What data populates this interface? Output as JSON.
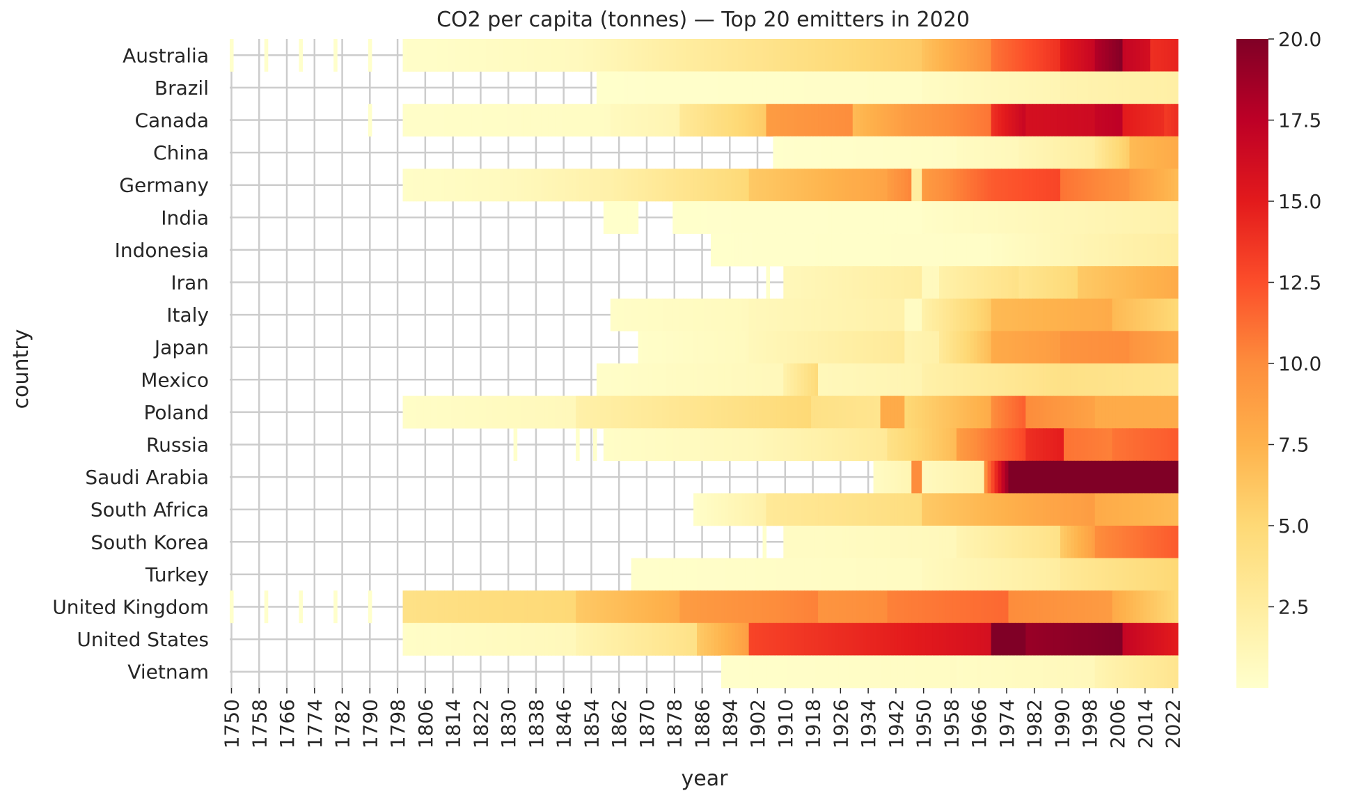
{
  "chart_data": {
    "type": "heatmap",
    "title": "CO2 per capita (tonnes) — Top 20 emitters in 2020",
    "xlabel": "year",
    "ylabel": "country",
    "x_range": [
      1750,
      2023
    ],
    "x_tick_step": 8,
    "colormap": "YlOrRd",
    "colorbar": {
      "range": [
        0,
        20
      ],
      "ticks": [
        2.5,
        5.0,
        7.5,
        10.0,
        12.5,
        15.0,
        17.5,
        20.0
      ],
      "tick_labels": [
        "2.5",
        "5.0",
        "7.5",
        "10.0",
        "12.5",
        "15.0",
        "17.5",
        "20.0"
      ]
    },
    "grid": true,
    "countries": [
      "Australia",
      "Brazil",
      "Canada",
      "China",
      "Germany",
      "India",
      "Indonesia",
      "Iran",
      "Italy",
      "Japan",
      "Mexico",
      "Poland",
      "Russia",
      "Saudi Arabia",
      "South Africa",
      "South Korea",
      "Turkey",
      "United Kingdom",
      "United States",
      "Vietnam"
    ],
    "series": [
      {
        "name": "Australia",
        "spikes": [
          1750,
          1760,
          1770,
          1780,
          1790
        ],
        "segments": [
          [
            1800,
            1850,
            0.2,
            0.8
          ],
          [
            1850,
            1880,
            0.8,
            2.5
          ],
          [
            1880,
            1950,
            2.5,
            6
          ],
          [
            1950,
            1970,
            6.5,
            10
          ],
          [
            1970,
            1990,
            11,
            14
          ],
          [
            1990,
            2000,
            15,
            17
          ],
          [
            2000,
            2008,
            18,
            20
          ],
          [
            2008,
            2016,
            17,
            16
          ],
          [
            2016,
            2023,
            14,
            14.5
          ]
        ]
      },
      {
        "name": "Brazil",
        "segments": [
          [
            1856,
            1950,
            0.05,
            0.3
          ],
          [
            1950,
            1990,
            0.5,
            1.4
          ],
          [
            1990,
            2023,
            1.6,
            2.2
          ]
        ]
      },
      {
        "name": "Canada",
        "spikes": [
          1790
        ],
        "segments": [
          [
            1800,
            1860,
            0.2,
            0.5
          ],
          [
            1860,
            1880,
            0.8,
            1.5
          ],
          [
            1880,
            1905,
            3,
            6
          ],
          [
            1905,
            1930,
            9,
            10
          ],
          [
            1930,
            1945,
            7,
            9
          ],
          [
            1945,
            1970,
            9,
            11
          ],
          [
            1970,
            1980,
            14,
            17
          ],
          [
            1980,
            2000,
            16,
            16.5
          ],
          [
            2000,
            2008,
            17,
            17.5
          ],
          [
            2008,
            2020,
            15,
            14
          ],
          [
            2020,
            2023,
            13.5,
            14
          ]
        ]
      },
      {
        "name": "China",
        "segments": [
          [
            1907,
            1960,
            0.05,
            0.4
          ],
          [
            1960,
            1978,
            0.6,
            1
          ],
          [
            1978,
            2000,
            1.2,
            2.5
          ],
          [
            2000,
            2010,
            3,
            6
          ],
          [
            2010,
            2023,
            7,
            8
          ]
        ]
      },
      {
        "name": "Germany",
        "segments": [
          [
            1800,
            1830,
            0.3,
            0.8
          ],
          [
            1830,
            1860,
            0.8,
            2
          ],
          [
            1860,
            1900,
            2,
            5
          ],
          [
            1900,
            1940,
            6,
            8.5
          ],
          [
            1940,
            1947,
            9,
            10.5
          ],
          [
            1947,
            1950,
            2.5,
            2.5
          ],
          [
            1950,
            1970,
            9,
            12
          ],
          [
            1970,
            1990,
            12,
            13
          ],
          [
            1990,
            2010,
            11,
            9.5
          ],
          [
            2010,
            2023,
            9,
            7
          ]
        ]
      },
      {
        "name": "India",
        "segments": [
          [
            1858,
            1867,
            0.05,
            0.05
          ],
          [
            1878,
            1950,
            0.05,
            0.2
          ],
          [
            1950,
            2023,
            0.3,
            1.9
          ]
        ]
      },
      {
        "name": "Indonesia",
        "segments": [
          [
            1889,
            1970,
            0.05,
            0.3
          ],
          [
            1970,
            2023,
            0.4,
            2.5
          ]
        ]
      },
      {
        "name": "Iran",
        "spikes": [
          1905
        ],
        "segments": [
          [
            1910,
            1950,
            1,
            2.5
          ],
          [
            1950,
            1955,
            0.8,
            0.8
          ],
          [
            1955,
            1978,
            2,
            4
          ],
          [
            1978,
            1995,
            3.5,
            5
          ],
          [
            1995,
            2023,
            6,
            8
          ]
        ]
      },
      {
        "name": "Italy",
        "segments": [
          [
            1860,
            1900,
            0.3,
            0.8
          ],
          [
            1900,
            1945,
            1,
            2
          ],
          [
            1945,
            1950,
            0.5,
            0.5
          ],
          [
            1950,
            1970,
            2,
            6
          ],
          [
            1970,
            2005,
            7,
            8
          ],
          [
            2005,
            2023,
            7,
            5
          ]
        ]
      },
      {
        "name": "Japan",
        "segments": [
          [
            1868,
            1900,
            0.2,
            0.8
          ],
          [
            1900,
            1945,
            1,
            3
          ],
          [
            1945,
            1955,
            1.5,
            2
          ],
          [
            1955,
            1970,
            3,
            7
          ],
          [
            1970,
            1990,
            8,
            9
          ],
          [
            1990,
            2010,
            9.5,
            10
          ],
          [
            2010,
            2023,
            9.5,
            8.5
          ]
        ]
      },
      {
        "name": "Mexico",
        "segments": [
          [
            1856,
            1910,
            0.2,
            1
          ],
          [
            1910,
            1920,
            2,
            5
          ],
          [
            1920,
            1950,
            1,
            1.5
          ],
          [
            1950,
            1990,
            2,
            4
          ],
          [
            1990,
            2023,
            4,
            3.5
          ]
        ]
      },
      {
        "name": "Poland",
        "segments": [
          [
            1800,
            1850,
            0.3,
            1
          ],
          [
            1850,
            1918,
            2,
            5
          ],
          [
            1918,
            1938,
            4,
            3.5
          ],
          [
            1938,
            1945,
            8,
            8
          ],
          [
            1945,
            1970,
            5,
            8
          ],
          [
            1970,
            1980,
            10,
            12
          ],
          [
            1980,
            2000,
            10,
            8.5
          ],
          [
            2000,
            2023,
            8,
            8
          ]
        ]
      },
      {
        "name": "Russia",
        "spikes": [
          1832,
          1850,
          1855
        ],
        "segments": [
          [
            1858,
            1900,
            0.3,
            1
          ],
          [
            1900,
            1940,
            1,
            3
          ],
          [
            1940,
            1960,
            4,
            7
          ],
          [
            1960,
            1980,
            9,
            13
          ],
          [
            1980,
            1991,
            14,
            15
          ],
          [
            1991,
            2005,
            11,
            10.5
          ],
          [
            2005,
            2023,
            11,
            12
          ]
        ]
      },
      {
        "name": "Saudi Arabia",
        "segments": [
          [
            1936,
            1947,
            0.5,
            1.5
          ],
          [
            1947,
            1950,
            10,
            10
          ],
          [
            1950,
            1968,
            0.8,
            2
          ],
          [
            1968,
            1975,
            10,
            20
          ],
          [
            1975,
            2023,
            20,
            20
          ]
        ]
      },
      {
        "name": "South Africa",
        "segments": [
          [
            1884,
            1905,
            0.2,
            2
          ],
          [
            1905,
            1950,
            3,
            4.5
          ],
          [
            1950,
            1980,
            6,
            8
          ],
          [
            1980,
            2000,
            8,
            9
          ],
          [
            2000,
            2023,
            8,
            7
          ]
        ]
      },
      {
        "name": "South Korea",
        "spikes": [
          1904
        ],
        "segments": [
          [
            1910,
            1918,
            0.5,
            0.5
          ],
          [
            1918,
            1960,
            0.5,
            1
          ],
          [
            1960,
            1990,
            1.5,
            4
          ],
          [
            1990,
            2000,
            6,
            9
          ],
          [
            2000,
            2023,
            10,
            12
          ]
        ]
      },
      {
        "name": "Turkey",
        "segments": [
          [
            1866,
            1950,
            0.1,
            0.6
          ],
          [
            1950,
            1990,
            0.8,
            2.5
          ],
          [
            1990,
            2023,
            3,
            5
          ]
        ]
      },
      {
        "name": "United Kingdom",
        "spikes": [
          1750,
          1760,
          1770,
          1780,
          1790
        ],
        "segments": [
          [
            1800,
            1850,
            4,
            5
          ],
          [
            1850,
            1880,
            6,
            8
          ],
          [
            1880,
            1920,
            9,
            10.5
          ],
          [
            1920,
            1940,
            9.5,
            10
          ],
          [
            1940,
            1975,
            10.5,
            11.5
          ],
          [
            1975,
            2005,
            10,
            9
          ],
          [
            2005,
            2023,
            8,
            5
          ]
        ]
      },
      {
        "name": "United States",
        "segments": [
          [
            1800,
            1850,
            0.3,
            1
          ],
          [
            1850,
            1885,
            1.5,
            4
          ],
          [
            1885,
            1900,
            6,
            9
          ],
          [
            1900,
            1970,
            13,
            16
          ],
          [
            1970,
            1980,
            20,
            20
          ],
          [
            1980,
            2008,
            19,
            20
          ],
          [
            2008,
            2023,
            17,
            15
          ]
        ]
      },
      {
        "name": "Vietnam",
        "segments": [
          [
            1892,
            1960,
            0.1,
            0.5
          ],
          [
            1960,
            2000,
            0.4,
            1
          ],
          [
            2000,
            2023,
            1.5,
            3.5
          ]
        ]
      }
    ]
  }
}
